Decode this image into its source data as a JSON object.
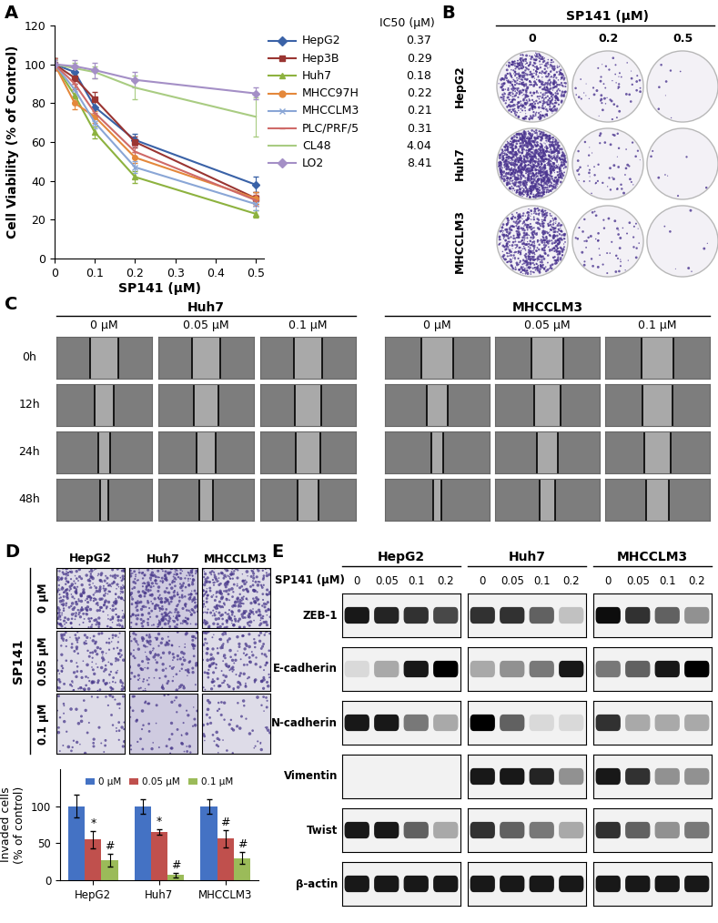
{
  "panel_labels": [
    "A",
    "B",
    "C",
    "D",
    "E"
  ],
  "chart_data": [
    {
      "type": "line",
      "xlabel": "SP141 (μM)",
      "ylabel": "Cell Viability (% of Control)",
      "x": [
        0,
        0.05,
        0.1,
        0.2,
        0.5
      ],
      "xlim": [
        0,
        0.52
      ],
      "xticks": [
        0,
        0.1,
        0.2,
        0.3,
        0.4,
        0.5
      ],
      "ylim": [
        0,
        120
      ],
      "yticks": [
        0,
        20,
        40,
        60,
        80,
        100,
        120
      ],
      "ic50_header": "IC50 (μM)",
      "series": [
        {
          "name": "HepG2",
          "color": "#3a62a7",
          "marker": "diamond",
          "values": [
            100,
            96,
            78,
            61,
            38
          ],
          "errors": [
            3,
            3,
            4,
            3,
            4
          ],
          "ic50": 0.37
        },
        {
          "name": "Hep3B",
          "color": "#9a3532",
          "marker": "square",
          "values": [
            100,
            93,
            82,
            60,
            31
          ],
          "errors": [
            3,
            3,
            4,
            3,
            3
          ],
          "ic50": 0.29
        },
        {
          "name": "Huh7",
          "color": "#8db23f",
          "marker": "triangle",
          "values": [
            100,
            84,
            65,
            42,
            23
          ],
          "errors": [
            3,
            4,
            3,
            3,
            2
          ],
          "ic50": 0.18
        },
        {
          "name": "MHCC97H",
          "color": "#e4883b",
          "marker": "circle",
          "values": [
            100,
            80,
            73,
            52,
            31
          ],
          "errors": [
            3,
            3,
            3,
            3,
            3
          ],
          "ic50": 0.22
        },
        {
          "name": "MHCCLM3",
          "color": "#8aa6d6",
          "marker": "x",
          "values": [
            100,
            87,
            70,
            47,
            28
          ],
          "errors": [
            3,
            3,
            3,
            3,
            3
          ],
          "ic50": 0.21
        },
        {
          "name": "PLC/PRF/5",
          "color": "#cf6a68",
          "marker": "dash",
          "values": [
            100,
            90,
            75,
            55,
            30
          ],
          "errors": [
            3,
            3,
            3,
            3,
            3
          ],
          "ic50": 0.31
        },
        {
          "name": "CL48",
          "color": "#a9cc82",
          "marker": "none",
          "values": [
            100,
            98,
            96,
            88,
            73
          ],
          "errors": [
            2,
            3,
            3,
            6,
            10
          ],
          "ic50": 4.04
        },
        {
          "name": "LO2",
          "color": "#a48fc6",
          "marker": "diamond",
          "values": [
            100,
            99,
            97,
            92,
            85
          ],
          "errors": [
            2,
            3,
            4,
            4,
            3
          ],
          "ic50": 8.41
        }
      ]
    },
    {
      "type": "bar",
      "ylabel": "Invaded cells\n(% of control)",
      "categories": [
        "HepG2",
        "Huh7",
        "MHCCLM3"
      ],
      "ylim": [
        0,
        150
      ],
      "yticks": [
        0,
        50,
        100
      ],
      "legend": "upper center",
      "series": [
        {
          "name": "0 μM",
          "color": "#4472c4",
          "values": [
            100,
            100,
            100
          ],
          "errors": [
            15,
            10,
            10
          ]
        },
        {
          "name": "0.05 μM",
          "color": "#c0504d",
          "values": [
            55,
            65,
            56
          ],
          "errors": [
            12,
            4,
            12
          ],
          "marks": [
            "*",
            "*",
            "#"
          ]
        },
        {
          "name": "0.1 μM",
          "color": "#9bbb59",
          "values": [
            27,
            7,
            30
          ],
          "errors": [
            9,
            3,
            8
          ],
          "marks": [
            "#",
            "#",
            "#"
          ]
        }
      ]
    }
  ],
  "colony_assay": {
    "header": "SP141 (μM)",
    "columns": [
      "0",
      "0.2",
      "0.5"
    ],
    "rows": [
      "HepG2",
      "Huh7",
      "MHCCLM3"
    ]
  },
  "wound_healing": {
    "groups": [
      "Huh7",
      "MHCCLM3"
    ],
    "columns": [
      "0 μM",
      "0.05 μM",
      "0.1 μM"
    ],
    "rows": [
      "0h",
      "12h",
      "24h",
      "48h"
    ]
  },
  "invasion_images": {
    "side_label": "SP141",
    "columns": [
      "HepG2",
      "Huh7",
      "MHCCLM3"
    ],
    "rows": [
      "0 μM",
      "0.05 μM",
      "0.1 μM"
    ]
  },
  "western_blot": {
    "header": "SP141 (μM)",
    "groups": [
      "HepG2",
      "Huh7",
      "MHCCLM3"
    ],
    "lanes": [
      "0",
      "0.05",
      "0.1",
      "0.2"
    ],
    "proteins": [
      {
        "name": "ZEB-1",
        "intensities": [
          [
            0.9,
            0.85,
            0.8,
            0.7
          ],
          [
            0.8,
            0.8,
            0.6,
            0.2
          ],
          [
            0.95,
            0.8,
            0.6,
            0.4
          ]
        ]
      },
      {
        "name": "E-cadherin",
        "intensities": [
          [
            0.1,
            0.3,
            0.9,
            1.0
          ],
          [
            0.3,
            0.4,
            0.5,
            0.9
          ],
          [
            0.5,
            0.6,
            0.9,
            1.0
          ]
        ]
      },
      {
        "name": "N-cadherin",
        "intensities": [
          [
            0.9,
            0.9,
            0.5,
            0.3
          ],
          [
            1.0,
            0.6,
            0.1,
            0.1
          ],
          [
            0.8,
            0.3,
            0.3,
            0.3
          ]
        ]
      },
      {
        "name": "Vimentin",
        "intensities": [
          [
            0,
            0,
            0,
            0
          ],
          [
            0.9,
            0.9,
            0.85,
            0.4
          ],
          [
            0.9,
            0.8,
            0.4,
            0.4
          ]
        ]
      },
      {
        "name": "Twist",
        "intensities": [
          [
            0.9,
            0.9,
            0.6,
            0.3
          ],
          [
            0.8,
            0.6,
            0.5,
            0.3
          ],
          [
            0.8,
            0.6,
            0.4,
            0.5
          ]
        ]
      },
      {
        "name": "β-actin",
        "intensities": [
          [
            0.9,
            0.9,
            0.9,
            0.9
          ],
          [
            0.9,
            0.9,
            0.9,
            0.9
          ],
          [
            0.9,
            0.9,
            0.9,
            0.9
          ]
        ]
      }
    ]
  }
}
